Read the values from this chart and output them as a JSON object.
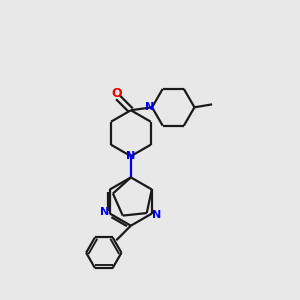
{
  "background_color": "#e8e8e8",
  "bond_color": "#1a1a1a",
  "N_color": "#0000ee",
  "O_color": "#ee0000",
  "line_width": 1.6,
  "figsize": [
    3.0,
    3.0
  ],
  "dpi": 100,
  "xlim": [
    0,
    10
  ],
  "ylim": [
    0,
    10
  ]
}
